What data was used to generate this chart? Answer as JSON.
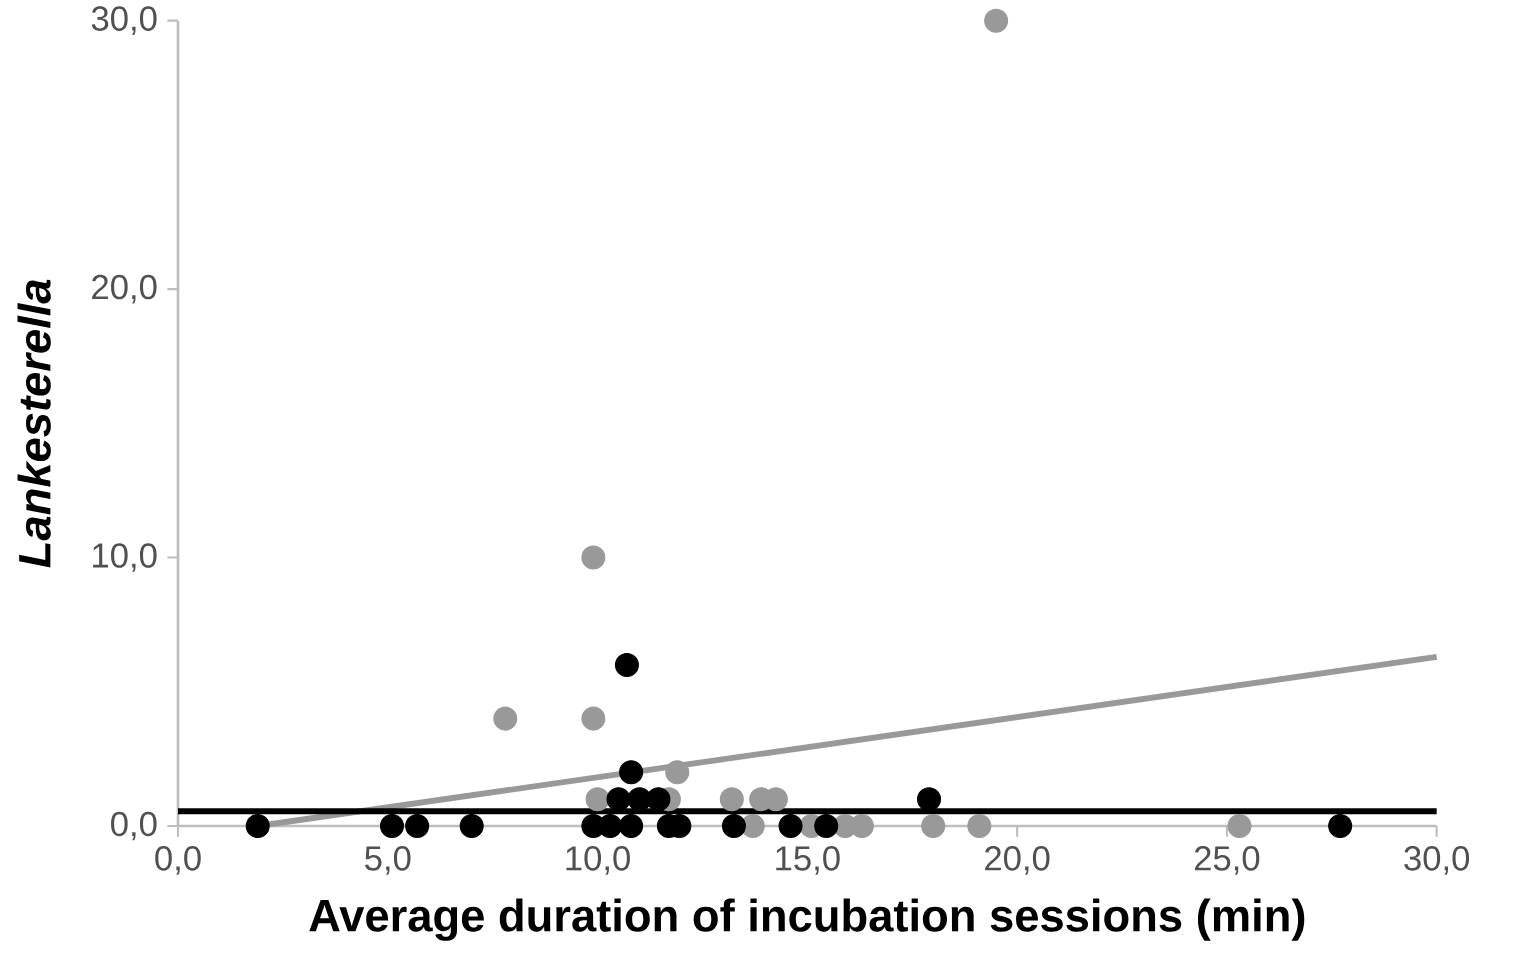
{
  "chart_data": {
    "type": "scatter",
    "xlabel": "Average duration of incubation sessions (min)",
    "ylabel": "Lankesterella",
    "xlim": [
      0,
      30
    ],
    "ylim": [
      0,
      30
    ],
    "xticks": [
      {
        "value": 0,
        "label": "0,0"
      },
      {
        "value": 5,
        "label": "5,0"
      },
      {
        "value": 10,
        "label": "10,0"
      },
      {
        "value": 15,
        "label": "15,0"
      },
      {
        "value": 20,
        "label": "20,0"
      },
      {
        "value": 25,
        "label": "25,0"
      },
      {
        "value": 30,
        "label": "30,0"
      }
    ],
    "yticks": [
      {
        "value": 0,
        "label": "0,0"
      },
      {
        "value": 10,
        "label": "10,0"
      },
      {
        "value": 20,
        "label": "20,0"
      },
      {
        "value": 30,
        "label": "30,0"
      }
    ],
    "grid": false,
    "legend": false,
    "series": [
      {
        "type": "line",
        "marker": "none",
        "color": "#999999",
        "x": [
          1.9,
          30
        ],
        "values": [
          0,
          6.3
        ]
      },
      {
        "type": "line",
        "marker": "none",
        "color": "#000000",
        "x": [
          0,
          30
        ],
        "values": [
          0.55,
          0.55
        ]
      },
      {
        "marker": "circle",
        "color": "#999999",
        "x": [
          19.5,
          9.9,
          7.8,
          9.9,
          11.9,
          10.0,
          11.7,
          13.2,
          13.9,
          14.25,
          13.7,
          15.1,
          15.9,
          16.3,
          18.0,
          19.1,
          25.3
        ],
        "values": [
          30,
          10,
          4,
          4,
          2,
          1,
          1,
          1,
          1,
          1,
          0,
          0,
          0,
          0,
          0,
          0,
          0
        ]
      },
      {
        "marker": "circle",
        "color": "#000000",
        "x": [
          1.9,
          5.1,
          5.7,
          7.0,
          9.9,
          10.3,
          10.8,
          11.7,
          11.95,
          13.25,
          14.6,
          15.45,
          27.7,
          10.5,
          11.0,
          11.45,
          17.9,
          10.8,
          10.7
        ],
        "values": [
          0,
          0,
          0,
          0,
          0,
          0,
          0,
          0,
          0,
          0,
          0,
          0,
          0,
          1,
          1,
          1,
          1,
          2,
          6
        ]
      }
    ]
  }
}
